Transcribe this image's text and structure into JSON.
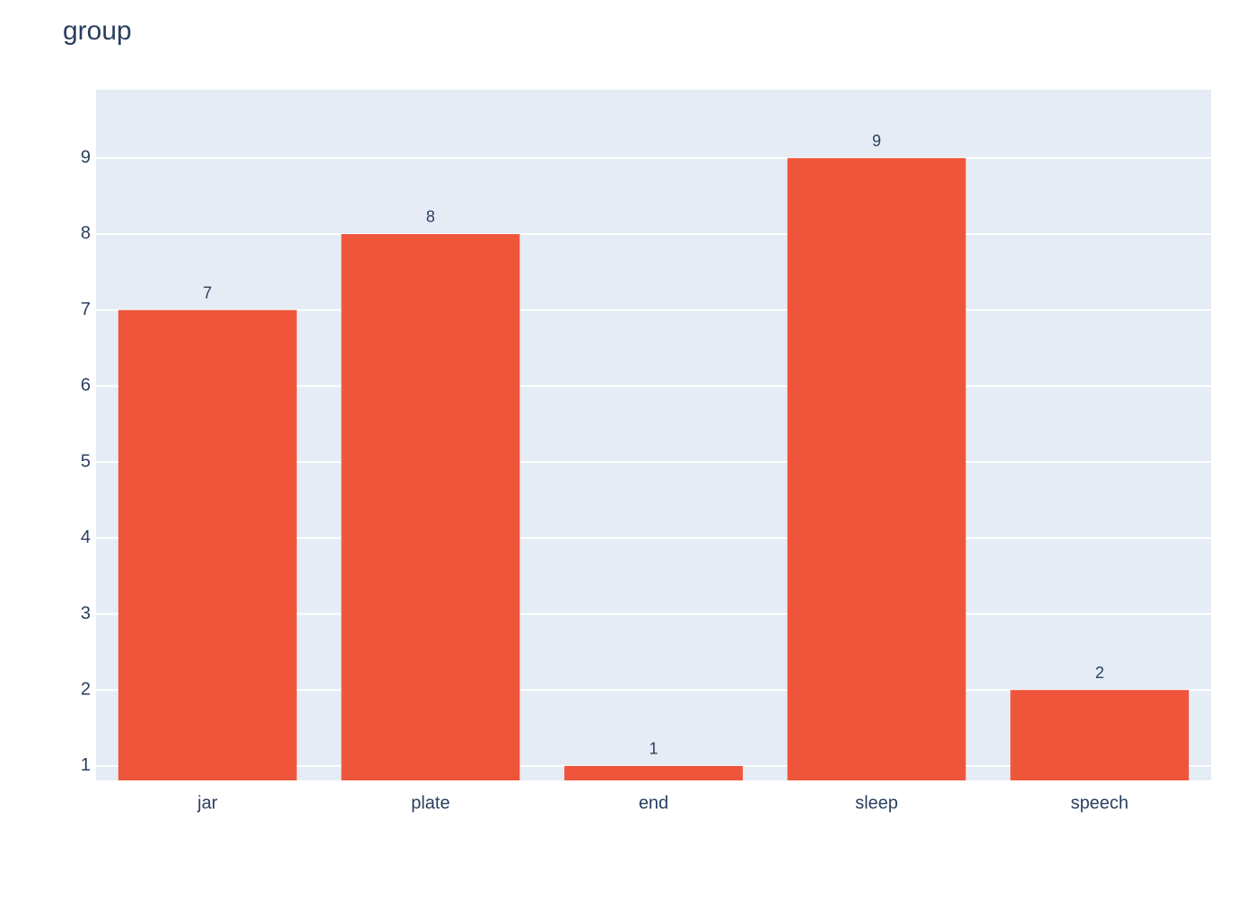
{
  "chart_data": {
    "type": "bar",
    "title": "group",
    "categories": [
      "jar",
      "plate",
      "end",
      "sleep",
      "speech"
    ],
    "values": [
      7,
      8,
      1,
      9,
      2
    ],
    "color": "#ef553b",
    "ylim": [
      0.81,
      9.9
    ],
    "yticks": [
      1,
      2,
      3,
      4,
      5,
      6,
      7,
      8,
      9
    ],
    "grid": true
  }
}
